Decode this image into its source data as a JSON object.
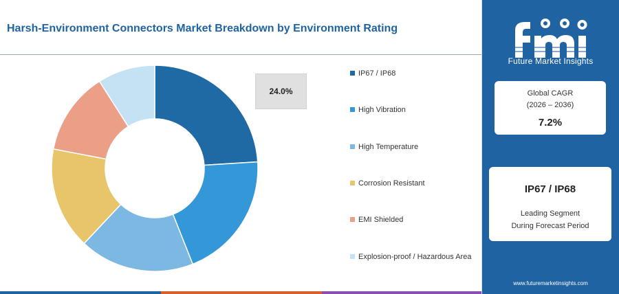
{
  "title": "Harsh-Environment Connectors Market Breakdown by Environment Rating",
  "chart_data": {
    "type": "pie",
    "donut": true,
    "categories": [
      "IP67 / IP68",
      "High Vibration",
      "High Temperature",
      "Corrosion Resistant",
      "EMI Shielded",
      "Explosion-proof / Hazardous Area"
    ],
    "values": [
      24.0,
      20.0,
      18.0,
      16.0,
      13.0,
      9.0
    ],
    "colors": [
      "#1f6aa5",
      "#3397d8",
      "#7db8e2",
      "#e8c56a",
      "#eb9f86",
      "#c5e1f4"
    ],
    "data_labels": [
      "24.0%"
    ],
    "legend_position": "right"
  },
  "legend": [
    {
      "label": "IP67 / IP68",
      "color": "#1f6aa5"
    },
    {
      "label": "High Vibration",
      "color": "#3397d8"
    },
    {
      "label": "High Temperature",
      "color": "#7db8e2"
    },
    {
      "label": "Corrosion Resistant",
      "color": "#e8c56a"
    },
    {
      "label": "EMI Shielded",
      "color": "#eb9f86"
    },
    {
      "label": "Explosion-proof / Hazardous Area",
      "color": "#c5e1f4"
    }
  ],
  "tooltip": {
    "value": "24.0%"
  },
  "brand": {
    "logo_word": "fmi",
    "name": "Future Market Insights",
    "url": "www.futuremarketinsights.com",
    "color": "#1f63a3"
  },
  "kpi": {
    "line1": "Global CAGR",
    "line2": "(2026 – 2036)",
    "value": "7.2%"
  },
  "segment": {
    "title": "IP67 / IP68",
    "line1": "Leading Segment",
    "line2": "During Forecast Period"
  },
  "bottom_bar_colors": [
    "#1f63a3",
    "#d95f2b",
    "#8a4fb0"
  ]
}
